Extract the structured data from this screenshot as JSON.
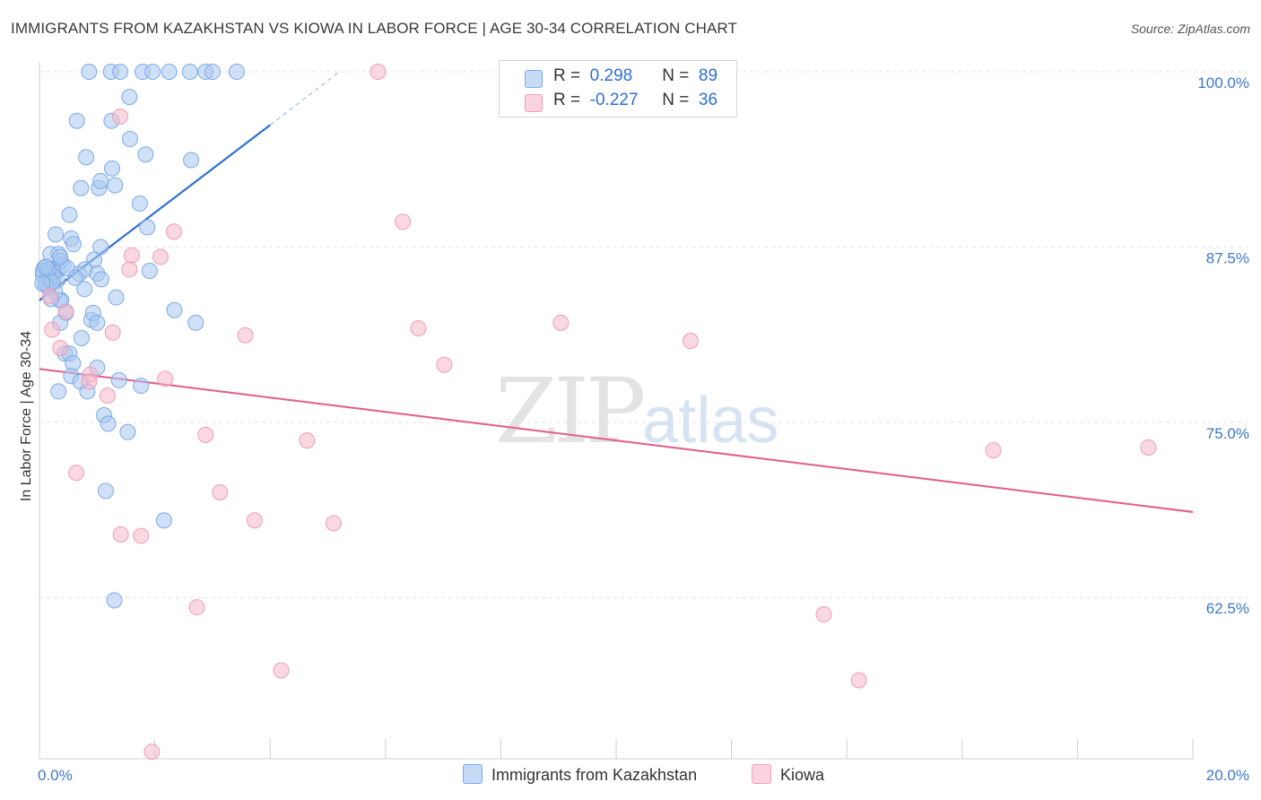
{
  "title": "IMMIGRANTS FROM KAZAKHSTAN VS KIOWA IN LABOR FORCE | AGE 30-34 CORRELATION CHART",
  "source": "Source: ZipAtlas.com",
  "watermark": {
    "zip": "ZIP",
    "atlas": "atlas"
  },
  "legend": {
    "rows": [
      {
        "r_label": "R =",
        "r_value": "0.298",
        "n_label": "N =",
        "n_value": "89",
        "color": "#a9c8f0"
      },
      {
        "r_label": "R =",
        "r_value": "-0.227",
        "n_label": "N =",
        "n_value": "36",
        "color": "#f5b8cb"
      }
    ]
  },
  "bottom_legend": [
    {
      "label": "Immigrants from Kazakhstan",
      "color": "#a9c8f0"
    },
    {
      "label": "Kiowa",
      "color": "#f5b8cb"
    }
  ],
  "chart_data": {
    "type": "scatter",
    "title": "IMMIGRANTS FROM KAZAKHSTAN VS KIOWA IN LABOR FORCE | AGE 30-34 CORRELATION CHART",
    "xlabel": "",
    "ylabel": "In Labor Force | Age 30-34",
    "xlim": [
      0.0,
      20.0
    ],
    "ylim": [
      51.0,
      101.0
    ],
    "x_tick_labels": [
      "0.0%",
      "20.0%"
    ],
    "y_ticks": [
      62.5,
      75.0,
      87.5,
      100.0
    ],
    "y_tick_labels": [
      "62.5%",
      "75.0%",
      "87.5%",
      "100.0%"
    ],
    "grid": true,
    "series": [
      {
        "name": "Immigrants from Kazakhstan",
        "color": "#7aaae6",
        "fill": "#a9c8f0",
        "trend": {
          "x": [
            0.0,
            4.0
          ],
          "y": [
            83.7,
            96.2
          ],
          "dashed_to": [
            5.2,
            100.0
          ],
          "color": "#2f6fd0"
        },
        "points": [
          [
            0.86,
            100.0
          ],
          [
            1.24,
            100.0
          ],
          [
            1.4,
            100.0
          ],
          [
            1.79,
            100.0
          ],
          [
            1.96,
            100.0
          ],
          [
            2.25,
            100.0
          ],
          [
            2.61,
            100.0
          ],
          [
            2.88,
            100.0
          ],
          [
            3.0,
            100.0
          ],
          [
            3.42,
            100.0
          ],
          [
            1.56,
            98.2
          ],
          [
            0.65,
            96.5
          ],
          [
            1.25,
            96.5
          ],
          [
            1.57,
            95.2
          ],
          [
            0.81,
            93.9
          ],
          [
            1.84,
            94.1
          ],
          [
            2.63,
            93.7
          ],
          [
            1.26,
            93.1
          ],
          [
            0.72,
            91.7
          ],
          [
            1.03,
            91.7
          ],
          [
            1.06,
            92.2
          ],
          [
            1.31,
            91.9
          ],
          [
            1.74,
            90.6
          ],
          [
            0.52,
            89.8
          ],
          [
            1.87,
            88.9
          ],
          [
            0.28,
            88.4
          ],
          [
            0.55,
            88.1
          ],
          [
            0.59,
            87.7
          ],
          [
            0.19,
            87.0
          ],
          [
            1.06,
            87.5
          ],
          [
            0.33,
            87.0
          ],
          [
            0.37,
            86.5
          ],
          [
            0.95,
            86.6
          ],
          [
            0.21,
            85.9
          ],
          [
            0.08,
            86.0
          ],
          [
            0.32,
            85.9
          ],
          [
            0.06,
            85.5
          ],
          [
            0.25,
            85.4
          ],
          [
            0.69,
            85.6
          ],
          [
            0.79,
            85.9
          ],
          [
            1.0,
            85.6
          ],
          [
            1.91,
            85.8
          ],
          [
            0.12,
            84.9
          ],
          [
            0.14,
            85.4
          ],
          [
            0.31,
            85.1
          ],
          [
            0.16,
            84.6
          ],
          [
            1.07,
            85.2
          ],
          [
            0.78,
            84.5
          ],
          [
            0.38,
            83.7
          ],
          [
            0.35,
            83.7
          ],
          [
            1.33,
            83.9
          ],
          [
            2.34,
            83.0
          ],
          [
            0.46,
            82.8
          ],
          [
            0.9,
            82.3
          ],
          [
            0.36,
            82.1
          ],
          [
            0.93,
            82.8
          ],
          [
            1.0,
            82.1
          ],
          [
            2.71,
            82.1
          ],
          [
            0.73,
            81.0
          ],
          [
            0.44,
            79.9
          ],
          [
            0.52,
            79.9
          ],
          [
            0.58,
            79.2
          ],
          [
            1.0,
            78.9
          ],
          [
            0.55,
            78.3
          ],
          [
            0.71,
            77.9
          ],
          [
            1.38,
            78.0
          ],
          [
            1.76,
            77.6
          ],
          [
            0.33,
            77.2
          ],
          [
            0.83,
            77.2
          ],
          [
            1.12,
            75.5
          ],
          [
            1.19,
            74.9
          ],
          [
            1.53,
            74.3
          ],
          [
            1.15,
            70.1
          ],
          [
            2.16,
            68.0
          ],
          [
            1.3,
            62.3
          ],
          [
            0.06,
            85.8
          ],
          [
            0.18,
            85.2
          ],
          [
            0.24,
            85.7
          ],
          [
            0.1,
            84.8
          ],
          [
            0.41,
            86.2
          ],
          [
            0.27,
            84.3
          ],
          [
            0.15,
            85.9
          ],
          [
            0.48,
            86.0
          ],
          [
            0.22,
            85.0
          ],
          [
            0.05,
            84.9
          ],
          [
            0.62,
            85.3
          ],
          [
            0.11,
            86.1
          ],
          [
            0.36,
            86.8
          ],
          [
            0.2,
            83.8
          ]
        ]
      },
      {
        "name": "Kiowa",
        "color": "#ef9db7",
        "fill": "#f5b8cb",
        "trend": {
          "x": [
            0.0,
            20.0
          ],
          "y": [
            78.8,
            68.6
          ],
          "color": "#e0648e"
        },
        "points": [
          [
            5.87,
            100.0
          ],
          [
            1.4,
            96.8
          ],
          [
            6.3,
            89.3
          ],
          [
            2.33,
            88.6
          ],
          [
            1.6,
            86.9
          ],
          [
            2.1,
            86.8
          ],
          [
            1.56,
            85.9
          ],
          [
            0.46,
            82.9
          ],
          [
            0.22,
            81.6
          ],
          [
            1.27,
            81.4
          ],
          [
            3.57,
            81.2
          ],
          [
            6.57,
            81.7
          ],
          [
            9.04,
            82.1
          ],
          [
            11.29,
            80.8
          ],
          [
            0.36,
            80.3
          ],
          [
            0.88,
            78.4
          ],
          [
            7.02,
            79.1
          ],
          [
            2.18,
            78.1
          ],
          [
            1.18,
            76.9
          ],
          [
            2.88,
            74.1
          ],
          [
            4.64,
            73.7
          ],
          [
            16.54,
            73.0
          ],
          [
            19.23,
            73.2
          ],
          [
            0.64,
            71.4
          ],
          [
            3.13,
            70.0
          ],
          [
            3.73,
            68.0
          ],
          [
            5.1,
            67.8
          ],
          [
            1.41,
            67.0
          ],
          [
            1.76,
            66.9
          ],
          [
            2.73,
            61.8
          ],
          [
            13.6,
            61.3
          ],
          [
            4.19,
            57.3
          ],
          [
            14.21,
            56.6
          ],
          [
            1.95,
            51.5
          ],
          [
            0.18,
            84.0
          ],
          [
            0.86,
            77.9
          ]
        ]
      }
    ]
  }
}
